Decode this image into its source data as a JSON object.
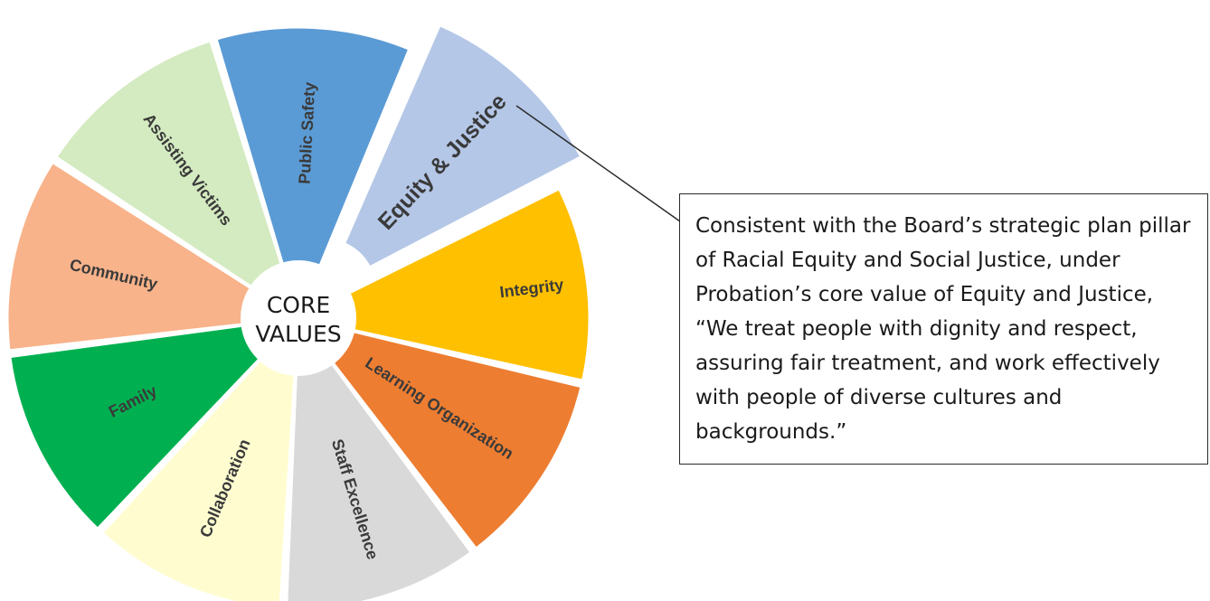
{
  "center": {
    "line1": "CORE",
    "line2": "VALUES"
  },
  "slices": [
    {
      "label": "Integrity",
      "color": "#FFC000",
      "highlighted": false
    },
    {
      "label": "Learning Organization",
      "color": "#ED7D31",
      "highlighted": false
    },
    {
      "label": "Staff Excellence",
      "color": "#D9D9D9",
      "highlighted": false
    },
    {
      "label": "Collaboration",
      "color": "#FFFDD0",
      "highlighted": false
    },
    {
      "label": "Family",
      "color": "#00B050",
      "highlighted": false
    },
    {
      "label": "Community",
      "color": "#F8B38A",
      "highlighted": false
    },
    {
      "label": "Assisting Victims",
      "color": "#D4EAC0",
      "highlighted": false
    },
    {
      "label": "Public Safety",
      "color": "#5B9BD5",
      "highlighted": false
    },
    {
      "label": "Equity & Justice",
      "color": "#B4C7E7",
      "highlighted": true
    }
  ],
  "callout": {
    "text": "Consistent with the Board’s strategic plan pillar of Racial Equity and Social Justice, under Probation’s core value of Equity and Justice, “We treat people with dignity and respect, assuring fair treatment, and work effectively with people of diverse cultures and backgrounds.”"
  }
}
